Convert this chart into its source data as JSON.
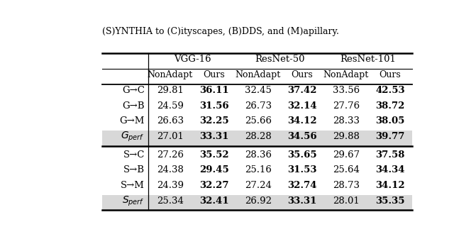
{
  "title_top": "(S)YNTHIA to (C)ityscapes, (B)DDS, and (M)apillary.",
  "col_groups": [
    "VGG-16",
    "ResNet-50",
    "ResNet-101"
  ],
  "sub_cols": [
    "NonAdapt",
    "Ours"
  ],
  "row_labels": [
    "G→C",
    "G→B",
    "G→M",
    "G_perf",
    "S→C",
    "S→B",
    "S→M",
    "S_perf"
  ],
  "data": [
    [
      "29.81",
      "36.11",
      "32.45",
      "37.42",
      "33.56",
      "42.53"
    ],
    [
      "24.59",
      "31.56",
      "26.73",
      "32.14",
      "27.76",
      "38.72"
    ],
    [
      "26.63",
      "32.25",
      "25.66",
      "34.12",
      "28.33",
      "38.05"
    ],
    [
      "27.01",
      "33.31",
      "28.28",
      "34.56",
      "29.88",
      "39.77"
    ],
    [
      "27.26",
      "35.52",
      "28.36",
      "35.65",
      "29.67",
      "37.58"
    ],
    [
      "24.38",
      "29.45",
      "25.16",
      "31.53",
      "25.64",
      "34.34"
    ],
    [
      "24.39",
      "32.27",
      "27.24",
      "32.74",
      "28.73",
      "34.12"
    ],
    [
      "25.34",
      "32.41",
      "26.92",
      "33.31",
      "28.01",
      "35.35"
    ]
  ],
  "bold_cols": [
    1,
    3,
    5
  ],
  "italic_rows": [
    3,
    7
  ],
  "shaded_rows": [
    3,
    7
  ],
  "background_color": "#ffffff",
  "shade_color": "#d8d8d8",
  "font_size": 9.5,
  "header_font_size": 9.5
}
